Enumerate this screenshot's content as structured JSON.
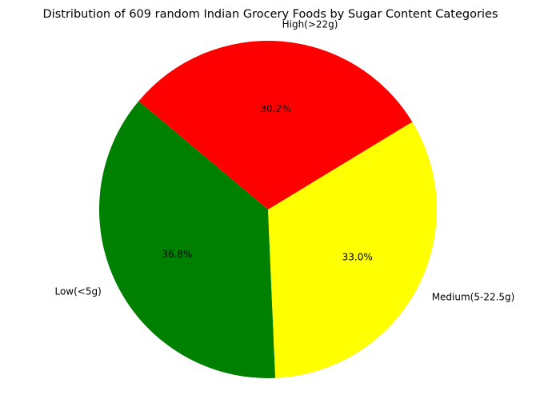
{
  "chart_data": {
    "type": "pie",
    "title": "Distribution of 609 random Indian Grocery Foods by Sugar Content Categories",
    "categories": [
      "Low(<5g)",
      "Medium(5-22.5g)",
      "High(>22g)"
    ],
    "values": [
      36.8,
      33.0,
      30.2
    ],
    "value_labels": [
      "36.8%",
      "33.0%",
      "30.2%"
    ],
    "colors": [
      "#008000",
      "#ffff00",
      "#ff0000"
    ],
    "start_angle_deg": 140,
    "direction": "counterclockwise",
    "legend": "none"
  }
}
